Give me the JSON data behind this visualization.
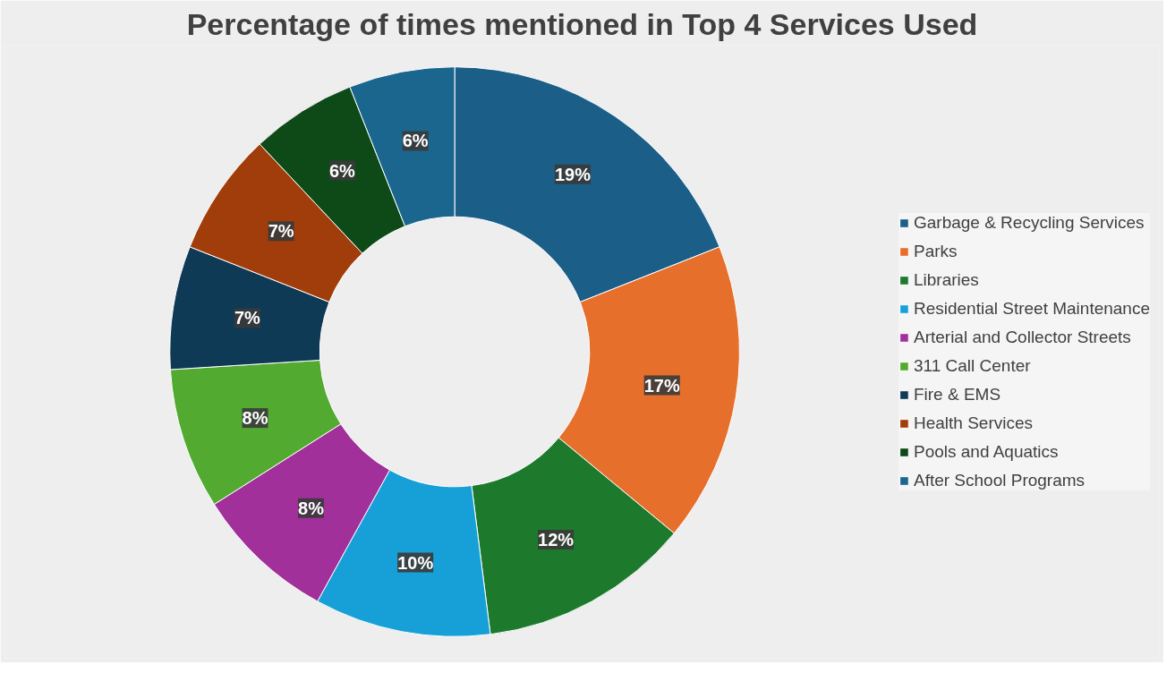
{
  "chart_data": {
    "type": "donut",
    "title": "Percentage of times mentioned in Top 4 Services Used",
    "categories": [
      "Garbage & Recycling Services",
      "Parks",
      "Libraries",
      "Residential Street Maintenance",
      "Arterial and Collector Streets",
      "311 Call Center",
      "Fire & EMS",
      "Health Services",
      "Pools and Aquatics",
      "After School Programs"
    ],
    "values": [
      19,
      17,
      12,
      10,
      8,
      8,
      7,
      7,
      6,
      6
    ],
    "colors": [
      "#1b5f88",
      "#e66f2b",
      "#1d7a2c",
      "#17a0d8",
      "#a1309a",
      "#52aa31",
      "#0f3a56",
      "#a13d0b",
      "#0d4a17",
      "#1a668f"
    ],
    "value_labels": [
      "19%",
      "17%",
      "12%",
      "10%",
      "8%",
      "8%",
      "7%",
      "7%",
      "6%",
      "6%"
    ],
    "legend": "right"
  }
}
